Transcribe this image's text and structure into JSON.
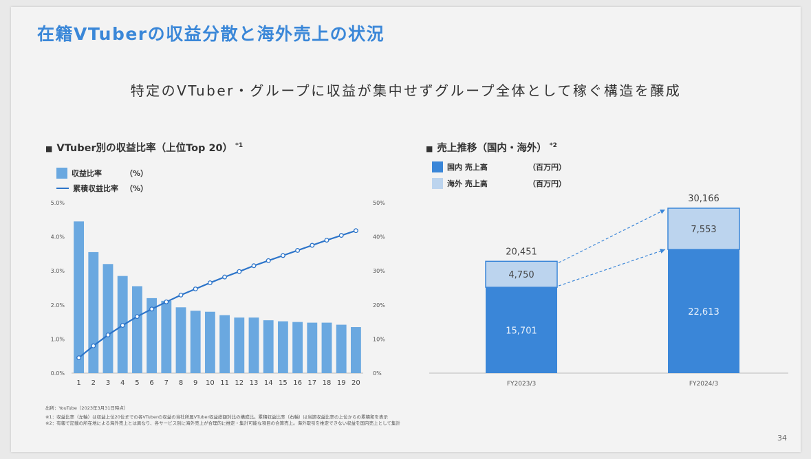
{
  "title": "在籍VTuberの収益分散と海外売上の状況",
  "subtitle": "特定のVTuber・グループに収益が集中せずグループ全体として稼ぐ構造を醸成",
  "left_section": {
    "mark": "■",
    "title": "VTuber別の収益比率（上位Top 20）",
    "note_ref": "*1",
    "legend": [
      {
        "label": "収益比率",
        "unit": "（%）",
        "color": "#6aa8e0"
      },
      {
        "label": "累積収益比率",
        "unit": "（%）",
        "color": "#2c74c9"
      }
    ]
  },
  "right_section": {
    "mark": "■",
    "title": "売上推移（国内・海外）",
    "note_ref": "*2",
    "legend": [
      {
        "label": "国内 売上高",
        "unit": "（百万円）",
        "color": "#3a86d8"
      },
      {
        "label": "海外 売上高",
        "unit": "（百万円）",
        "color": "#bcd4ee"
      }
    ]
  },
  "chart_data": [
    {
      "type": "bar",
      "title": "VTuber別の収益比率（上位Top 20）",
      "categories": [
        "1",
        "2",
        "3",
        "4",
        "5",
        "6",
        "7",
        "8",
        "9",
        "10",
        "11",
        "12",
        "13",
        "14",
        "15",
        "16",
        "17",
        "18",
        "19",
        "20"
      ],
      "y_ticks_left": [
        "0.0%",
        "1.0%",
        "2.0%",
        "3.0%",
        "4.0%",
        "5.0%"
      ],
      "y_ticks_right": [
        "0%",
        "10%",
        "20%",
        "30%",
        "40%",
        "50%"
      ],
      "ylim_left": [
        0,
        5
      ],
      "ylim_right": [
        0,
        50
      ],
      "series": [
        {
          "name": "収益比率",
          "axis": "left",
          "type": "bar",
          "color": "#6aa8e0",
          "values": [
            4.45,
            3.55,
            3.2,
            2.85,
            2.55,
            2.2,
            2.12,
            1.93,
            1.83,
            1.8,
            1.7,
            1.63,
            1.63,
            1.55,
            1.52,
            1.5,
            1.48,
            1.48,
            1.42,
            1.35
          ]
        },
        {
          "name": "累積収益比率",
          "axis": "right",
          "type": "line",
          "color": "#2c74c9",
          "values": [
            4.5,
            8.0,
            11.2,
            14.0,
            16.6,
            18.8,
            20.9,
            22.9,
            24.7,
            26.5,
            28.2,
            29.8,
            31.5,
            33.0,
            34.5,
            36.0,
            37.5,
            39.0,
            40.4,
            41.8
          ]
        }
      ]
    },
    {
      "type": "bar",
      "stacked": true,
      "title": "売上推移（国内・海外）",
      "categories": [
        "FY2023/3",
        "FY2024/3"
      ],
      "totals": [
        20451,
        30166
      ],
      "total_labels": [
        "20,451",
        "30,166"
      ],
      "series": [
        {
          "name": "国内 売上高",
          "color": "#3a86d8",
          "values": [
            15701,
            22613
          ],
          "labels": [
            "15,701",
            "22,613"
          ]
        },
        {
          "name": "海外 売上高",
          "color": "#bcd4ee",
          "values": [
            4750,
            7553
          ],
          "labels": [
            "4,750",
            "7,553"
          ]
        }
      ]
    }
  ],
  "notes": {
    "source": "出所：YouTube（2023年3月31日時点）",
    "note1": "※1：収益比率（左軸）は収益上位20位までの各VTuberの収益の当社所属VTuber収益総額対比の構成比。累積収益比率（右軸）は当該収益比率の上位からの累積和を表示",
    "note2": "※2：有報で記載の所在地による海外売上とは異なり、各サービス別に海外売上が合理的に推定・集計可能な項目の合算売上。海外取引を推定できない収益を国内売上として集計"
  },
  "page_number": "34"
}
